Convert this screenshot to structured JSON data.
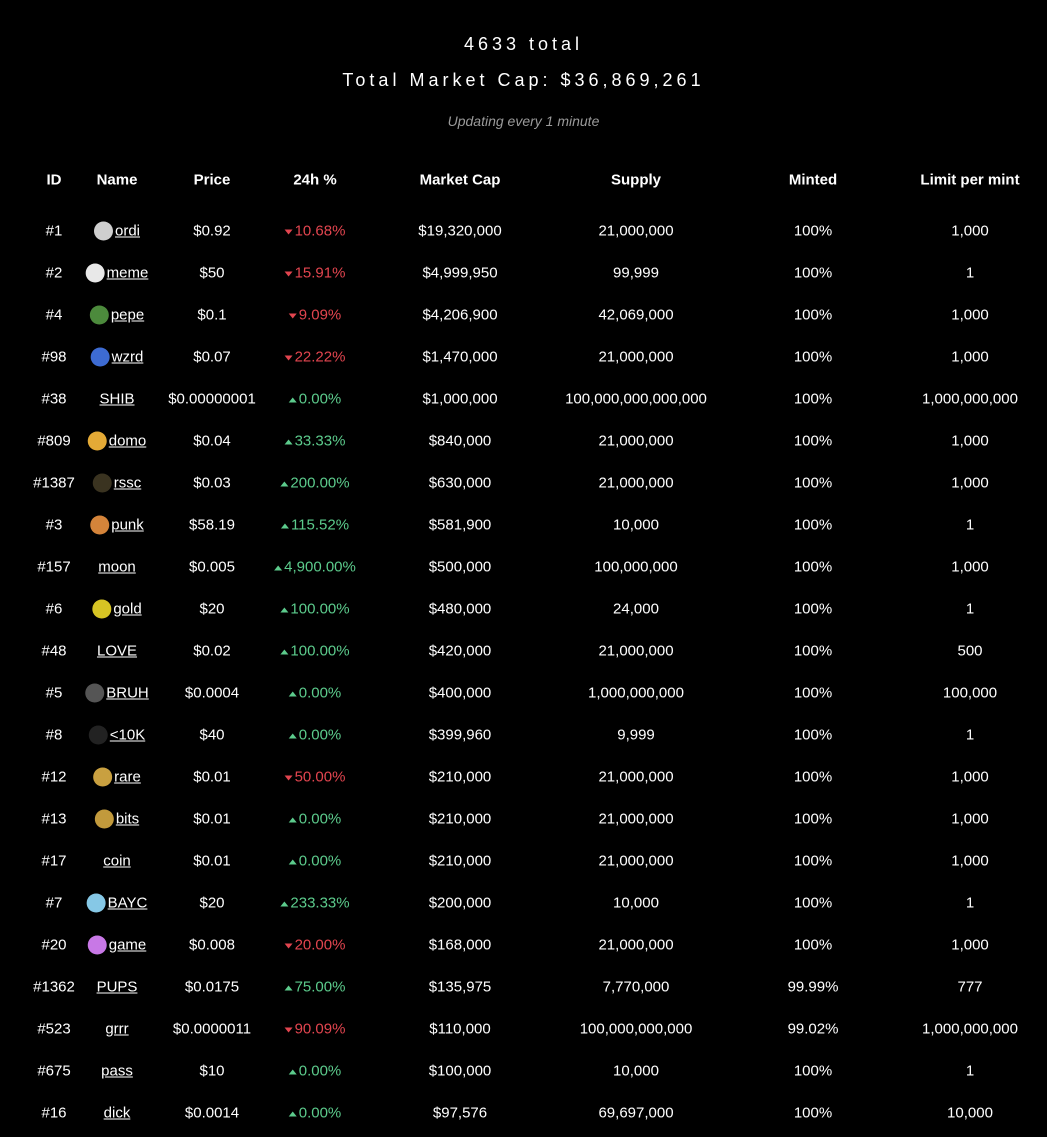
{
  "header": {
    "title": "4633 total",
    "market_cap": "Total Market Cap: $36,869,261",
    "subtitle": "Updating every 1 minute"
  },
  "table": {
    "columns": [
      "ID",
      "Name",
      "Price",
      "24h %",
      "Market Cap",
      "Supply",
      "Minted",
      "Limit per mint"
    ],
    "up_color": "#5ccb8c",
    "down_color": "#e2454f",
    "rows": [
      {
        "id": "#1",
        "name": "ordi",
        "price": "$0.92",
        "change": "10.68%",
        "trend": "down",
        "market_cap": "$19,320,000",
        "supply": "21,000,000",
        "minted": "100%",
        "limit": "1,000"
      },
      {
        "id": "#2",
        "name": "meme",
        "price": "$50",
        "change": "15.91%",
        "trend": "down",
        "market_cap": "$4,999,950",
        "supply": "99,999",
        "minted": "100%",
        "limit": "1"
      },
      {
        "id": "#4",
        "name": "pepe",
        "price": "$0.1",
        "change": "9.09%",
        "trend": "down",
        "market_cap": "$4,206,900",
        "supply": "42,069,000",
        "minted": "100%",
        "limit": "1,000"
      },
      {
        "id": "#98",
        "name": "wzrd",
        "price": "$0.07",
        "change": "22.22%",
        "trend": "down",
        "market_cap": "$1,470,000",
        "supply": "21,000,000",
        "minted": "100%",
        "limit": "1,000"
      },
      {
        "id": "#38",
        "name": "SHIB",
        "price": "$0.00000001",
        "change": "0.00%",
        "trend": "up",
        "market_cap": "$1,000,000",
        "supply": "100,000,000,000,000",
        "minted": "100%",
        "limit": "1,000,000,000"
      },
      {
        "id": "#809",
        "name": "domo",
        "price": "$0.04",
        "change": "33.33%",
        "trend": "up",
        "market_cap": "$840,000",
        "supply": "21,000,000",
        "minted": "100%",
        "limit": "1,000"
      },
      {
        "id": "#1387",
        "name": "rssc",
        "price": "$0.03",
        "change": "200.00%",
        "trend": "up",
        "market_cap": "$630,000",
        "supply": "21,000,000",
        "minted": "100%",
        "limit": "1,000"
      },
      {
        "id": "#3",
        "name": "punk",
        "price": "$58.19",
        "change": "115.52%",
        "trend": "up",
        "market_cap": "$581,900",
        "supply": "10,000",
        "minted": "100%",
        "limit": "1"
      },
      {
        "id": "#157",
        "name": "moon",
        "price": "$0.005",
        "change": "4,900.00%",
        "trend": "up",
        "market_cap": "$500,000",
        "supply": "100,000,000",
        "minted": "100%",
        "limit": "1,000"
      },
      {
        "id": "#6",
        "name": "gold",
        "price": "$20",
        "change": "100.00%",
        "trend": "up",
        "market_cap": "$480,000",
        "supply": "24,000",
        "minted": "100%",
        "limit": "1"
      },
      {
        "id": "#48",
        "name": "LOVE",
        "price": "$0.02",
        "change": "100.00%",
        "trend": "up",
        "market_cap": "$420,000",
        "supply": "21,000,000",
        "minted": "100%",
        "limit": "500"
      },
      {
        "id": "#5",
        "name": "BRUH",
        "price": "$0.0004",
        "change": "0.00%",
        "trend": "up",
        "market_cap": "$400,000",
        "supply": "1,000,000,000",
        "minted": "100%",
        "limit": "100,000"
      },
      {
        "id": "#8",
        "name": "<10K",
        "price": "$40",
        "change": "0.00%",
        "trend": "up",
        "market_cap": "$399,960",
        "supply": "9,999",
        "minted": "100%",
        "limit": "1"
      },
      {
        "id": "#12",
        "name": "rare",
        "price": "$0.01",
        "change": "50.00%",
        "trend": "down",
        "market_cap": "$210,000",
        "supply": "21,000,000",
        "minted": "100%",
        "limit": "1,000"
      },
      {
        "id": "#13",
        "name": "bits",
        "price": "$0.01",
        "change": "0.00%",
        "trend": "up",
        "market_cap": "$210,000",
        "supply": "21,000,000",
        "minted": "100%",
        "limit": "1,000"
      },
      {
        "id": "#17",
        "name": "coin",
        "price": "$0.01",
        "change": "0.00%",
        "trend": "up",
        "market_cap": "$210,000",
        "supply": "21,000,000",
        "minted": "100%",
        "limit": "1,000"
      },
      {
        "id": "#7",
        "name": "BAYC",
        "price": "$20",
        "change": "233.33%",
        "trend": "up",
        "market_cap": "$200,000",
        "supply": "10,000",
        "minted": "100%",
        "limit": "1"
      },
      {
        "id": "#20",
        "name": "game",
        "price": "$0.008",
        "change": "20.00%",
        "trend": "down",
        "market_cap": "$168,000",
        "supply": "21,000,000",
        "minted": "100%",
        "limit": "1,000"
      },
      {
        "id": "#1362",
        "name": "PUPS",
        "price": "$0.0175",
        "change": "75.00%",
        "trend": "up",
        "market_cap": "$135,975",
        "supply": "7,770,000",
        "minted": "99.99%",
        "limit": "777"
      },
      {
        "id": "#523",
        "name": "grrr",
        "price": "$0.0000011",
        "change": "90.09%",
        "trend": "down",
        "market_cap": "$110,000",
        "supply": "100,000,000,000",
        "minted": "99.02%",
        "limit": "1,000,000,000"
      },
      {
        "id": "#675",
        "name": "pass",
        "price": "$10",
        "change": "0.00%",
        "trend": "up",
        "market_cap": "$100,000",
        "supply": "10,000",
        "minted": "100%",
        "limit": "1"
      },
      {
        "id": "#16",
        "name": "dick",
        "price": "$0.0014",
        "change": "0.00%",
        "trend": "up",
        "market_cap": "$97,576",
        "supply": "69,697,000",
        "minted": "100%",
        "limit": "10,000"
      }
    ]
  }
}
